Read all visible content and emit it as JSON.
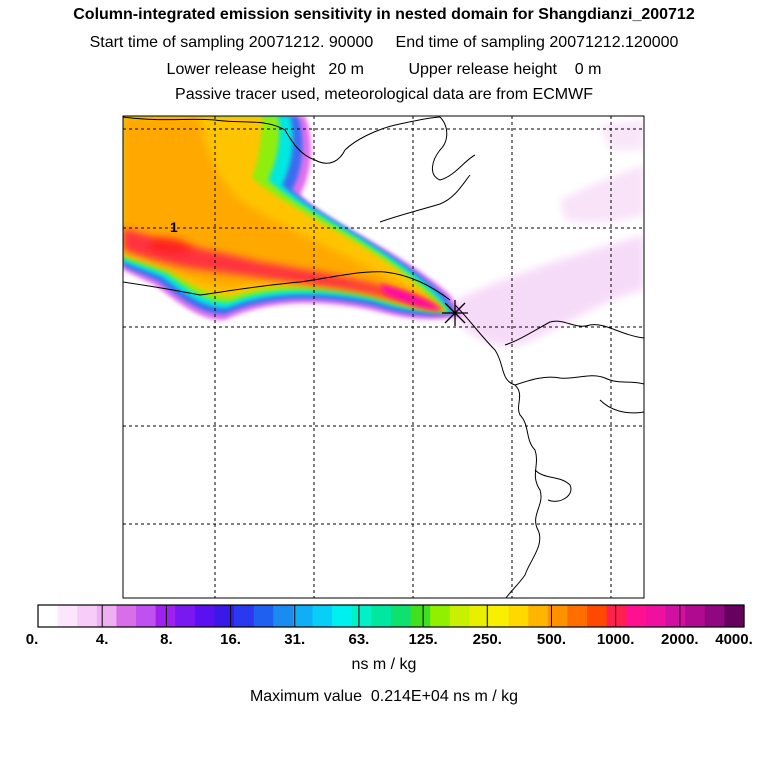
{
  "header": {
    "title": "Column-integrated emission sensitivity in nested domain for Shangdianzi_200712",
    "sampling_line": "Start time of sampling 20071212. 90000     End time of sampling 20071212.120000",
    "release_line": "Lower release height   20 m          Upper release height    0 m",
    "tracer_line": "Passive tracer used, meteorological data are from ECMWF"
  },
  "chart_data": {
    "type": "heatmap",
    "title": "Column-integrated emission sensitivity in nested domain for Shangdianzi_200712",
    "station": "Shangdianzi",
    "contour_label": "1",
    "colorbar": {
      "tick_labels": [
        "0.",
        "4.",
        "8.",
        "16.",
        "31.",
        "63.",
        "125.",
        "250.",
        "500.",
        "1000.",
        "2000.",
        "4000."
      ],
      "colors": [
        "#ffffff",
        "#fce6fc",
        "#f8ccf8",
        "#eeb0f2",
        "#d86ee8",
        "#c050f0",
        "#a020f0",
        "#7a18f2",
        "#5a10f0",
        "#3a18e8",
        "#2a38f0",
        "#2060f0",
        "#1a8cf0",
        "#10aef5",
        "#08cef8",
        "#00f0f0",
        "#00f0c8",
        "#00e8a0",
        "#10e070",
        "#40e020",
        "#90f000",
        "#c8f000",
        "#e8f000",
        "#f8f000",
        "#ffd800",
        "#ffb400",
        "#ff9000",
        "#ff6c00",
        "#ff4800",
        "#ff2050",
        "#ff1090",
        "#f010a0",
        "#d010a0",
        "#b00a90",
        "#900880",
        "#680060"
      ],
      "units": "ns m / kg"
    },
    "max_value_text": "Maximum value  0.214E+04 ns m / kg",
    "max_value": 2140,
    "units": "ns m / kg"
  }
}
